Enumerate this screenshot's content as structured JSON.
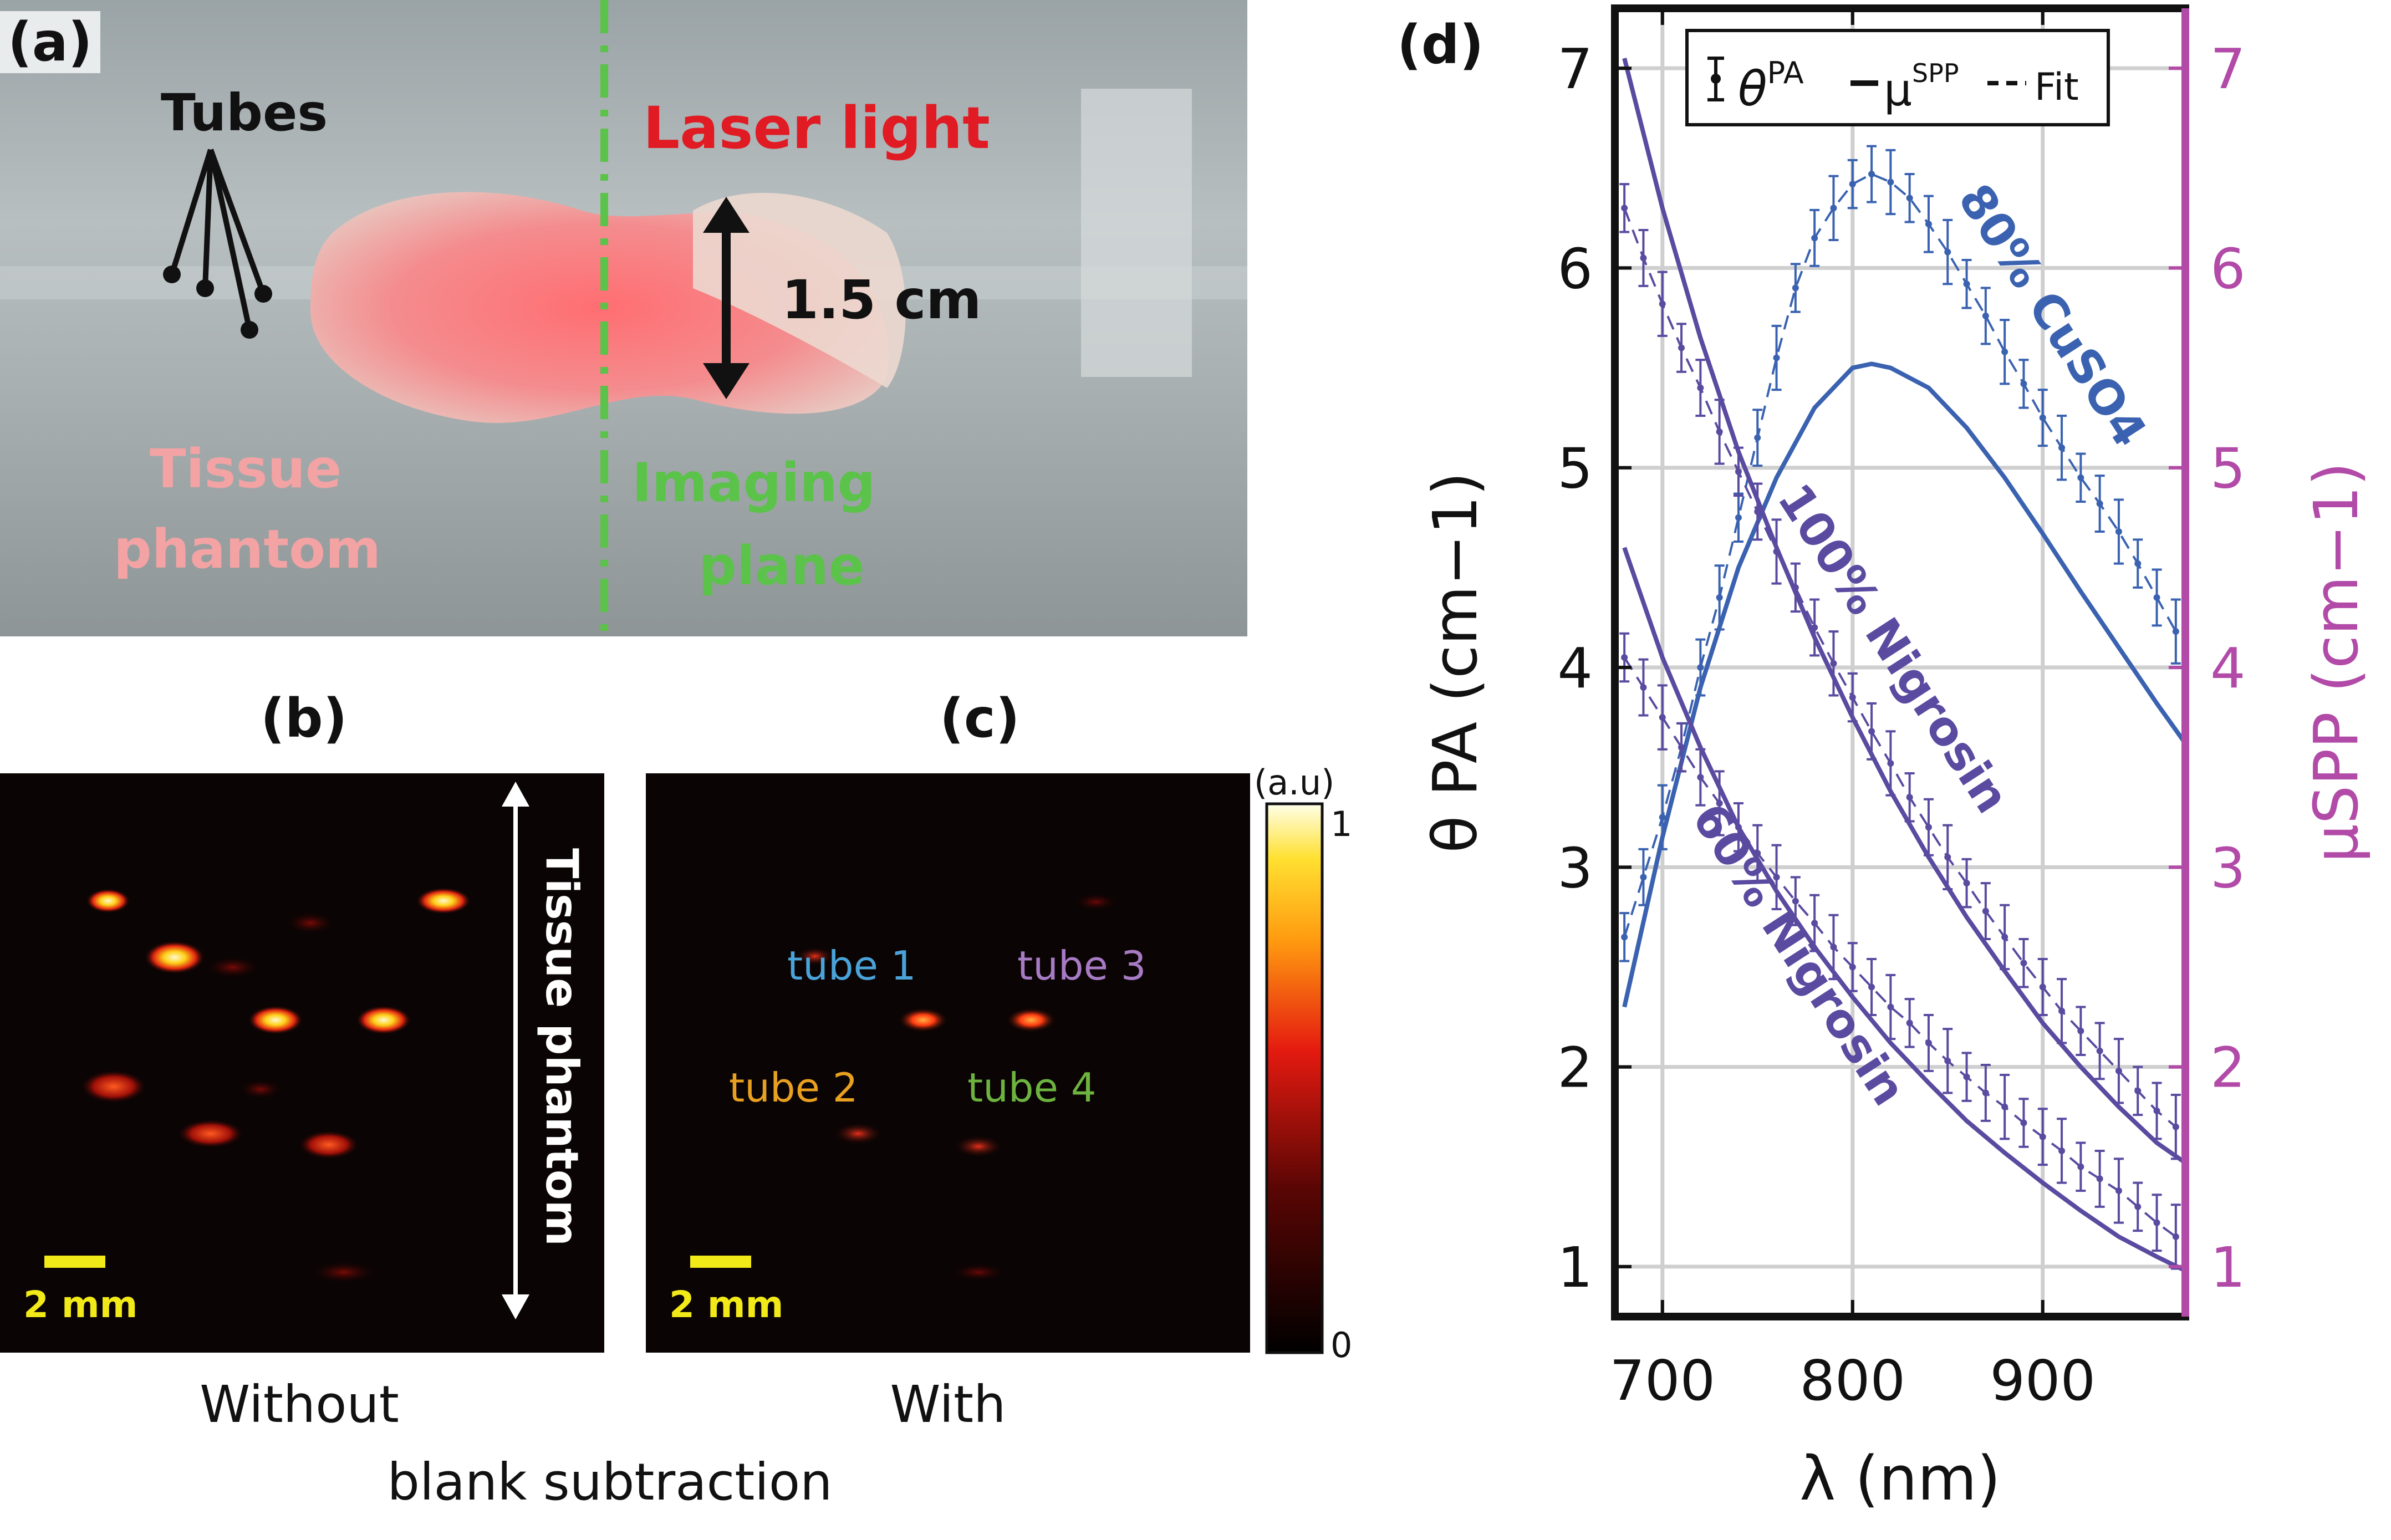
{
  "panel_a": {
    "label": "(a)",
    "tubes_label": "Tubes",
    "laser_label": "Laser light",
    "distance_label": "1.5 cm",
    "tissue_label_1": "Tissue",
    "tissue_label_2": "phantom",
    "imaging_label_1": "Imaging",
    "imaging_label_2": "plane"
  },
  "panel_b": {
    "label": "(b)",
    "scale": "2 mm",
    "vertical_label": "Tissue phantom",
    "caption": "Without"
  },
  "panel_c": {
    "label": "(c)",
    "scale": "2 mm",
    "caption": "With",
    "tubes": [
      {
        "label": "tube 1",
        "color": "#4aa3d8"
      },
      {
        "label": "tube 2",
        "color": "#e8a020"
      },
      {
        "label": "tube 3",
        "color": "#a77bc4"
      },
      {
        "label": "tube 4",
        "color": "#6db33f"
      }
    ]
  },
  "shared_caption": "blank subtraction",
  "colorbar": {
    "unit": "(a.u)",
    "max_label": "1",
    "min_label": "0"
  },
  "panel_d": {
    "label": "(d)"
  },
  "chart_data": {
    "type": "line",
    "xlabel": "λ (nm)",
    "ylabel_left": "θ PA (cm−1)",
    "ylabel_right": "μSPP (cm−1)",
    "xlim": [
      675,
      975
    ],
    "ylim": [
      0.75,
      7.3
    ],
    "xticks": [
      700,
      800,
      900
    ],
    "yticks": [
      1,
      2,
      3,
      4,
      5,
      6,
      7
    ],
    "grid": true,
    "legend_position": "top",
    "legend": [
      "θ PA",
      "μSPP",
      "Fit"
    ],
    "colors": {
      "cuso4": "#3a62b0",
      "nigrosin": "#5a4aa0",
      "right_axis": "#b24aa8"
    },
    "series": [
      {
        "name": "80% CuSO4",
        "kind": "measured_theta_pa",
        "x": [
          680,
          690,
          700,
          710,
          720,
          730,
          740,
          750,
          760,
          770,
          780,
          790,
          800,
          810,
          820,
          830,
          840,
          850,
          860,
          870,
          880,
          890,
          900,
          910,
          920,
          930,
          940,
          950,
          960,
          970
        ],
        "y": [
          2.65,
          2.95,
          3.25,
          3.6,
          4.0,
          4.35,
          4.75,
          5.15,
          5.55,
          5.9,
          6.15,
          6.3,
          6.42,
          6.47,
          6.43,
          6.35,
          6.22,
          6.08,
          5.92,
          5.76,
          5.58,
          5.42,
          5.25,
          5.1,
          4.95,
          4.82,
          4.68,
          4.52,
          4.35,
          4.18
        ]
      },
      {
        "name": "80% CuSO4 μSPP",
        "kind": "mu_spp",
        "x": [
          680,
          700,
          720,
          740,
          760,
          780,
          800,
          810,
          820,
          840,
          860,
          880,
          900,
          920,
          940,
          960,
          975
        ],
        "y": [
          2.3,
          3.15,
          3.9,
          4.5,
          4.95,
          5.3,
          5.5,
          5.52,
          5.5,
          5.4,
          5.2,
          4.95,
          4.67,
          4.38,
          4.1,
          3.82,
          3.62
        ]
      },
      {
        "name": "100% Nigrosin",
        "kind": "measured_theta_pa",
        "x": [
          680,
          690,
          700,
          710,
          720,
          730,
          740,
          750,
          760,
          770,
          780,
          790,
          800,
          810,
          820,
          830,
          840,
          850,
          860,
          870,
          880,
          890,
          900,
          910,
          920,
          930,
          940,
          950,
          960,
          970
        ],
        "y": [
          6.3,
          6.05,
          5.82,
          5.6,
          5.4,
          5.18,
          4.98,
          4.78,
          4.58,
          4.4,
          4.2,
          4.02,
          3.85,
          3.68,
          3.52,
          3.35,
          3.2,
          3.05,
          2.92,
          2.78,
          2.65,
          2.52,
          2.4,
          2.28,
          2.18,
          2.08,
          1.98,
          1.88,
          1.78,
          1.7
        ]
      },
      {
        "name": "100% Nigrosin μSPP",
        "kind": "mu_spp",
        "x": [
          680,
          700,
          720,
          740,
          760,
          780,
          800,
          820,
          840,
          860,
          880,
          900,
          920,
          940,
          960,
          975
        ],
        "y": [
          7.05,
          6.3,
          5.65,
          5.08,
          4.6,
          4.15,
          3.75,
          3.38,
          3.05,
          2.75,
          2.48,
          2.22,
          2.0,
          1.8,
          1.62,
          1.52
        ]
      },
      {
        "name": "60% Nigrosin",
        "kind": "measured_theta_pa",
        "x": [
          680,
          690,
          700,
          710,
          720,
          730,
          740,
          750,
          760,
          770,
          780,
          790,
          800,
          810,
          820,
          830,
          840,
          850,
          860,
          870,
          880,
          890,
          900,
          910,
          920,
          930,
          940,
          950,
          960,
          970
        ],
        "y": [
          4.05,
          3.9,
          3.75,
          3.6,
          3.45,
          3.32,
          3.2,
          3.07,
          2.95,
          2.83,
          2.72,
          2.6,
          2.5,
          2.4,
          2.3,
          2.22,
          2.12,
          2.03,
          1.95,
          1.87,
          1.8,
          1.72,
          1.65,
          1.58,
          1.5,
          1.44,
          1.38,
          1.3,
          1.22,
          1.15
        ]
      },
      {
        "name": "60% Nigrosin μSPP",
        "kind": "mu_spp",
        "x": [
          680,
          700,
          720,
          740,
          760,
          780,
          800,
          820,
          840,
          860,
          880,
          900,
          920,
          940,
          960,
          975
        ],
        "y": [
          4.6,
          4.05,
          3.6,
          3.2,
          2.88,
          2.6,
          2.35,
          2.12,
          1.92,
          1.73,
          1.57,
          1.42,
          1.28,
          1.15,
          1.05,
          0.98
        ]
      }
    ]
  }
}
